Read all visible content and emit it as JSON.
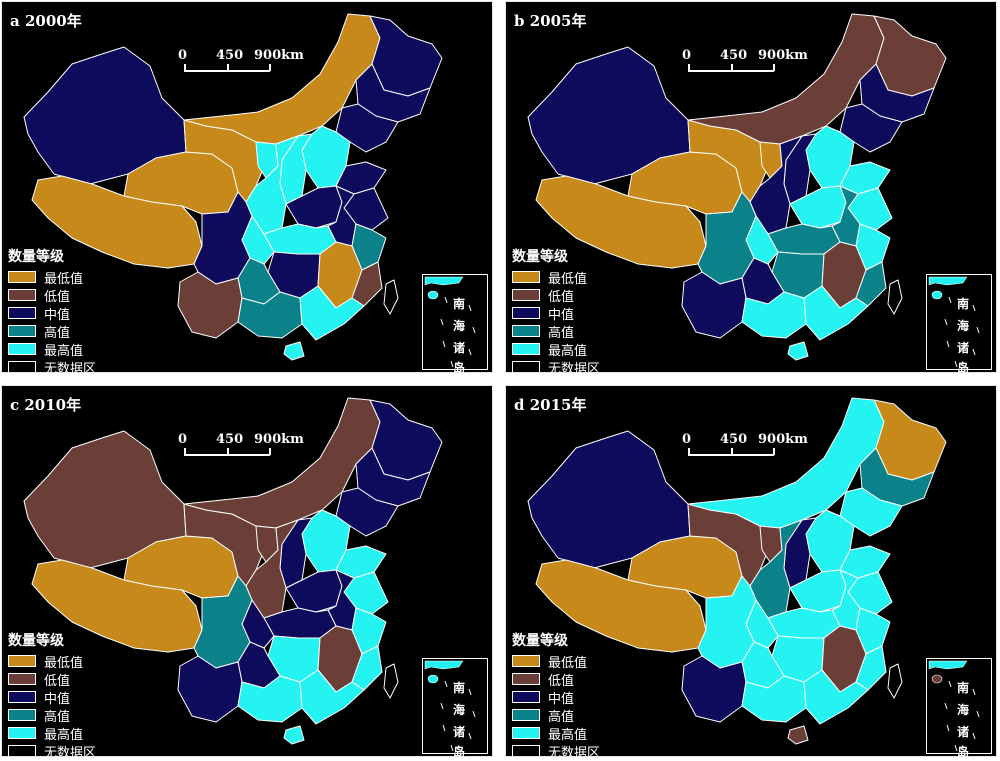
{
  "colors": {
    "lowest": "#c8891b",
    "low": "#6b3e38",
    "mid": "#0e0b5c",
    "high": "#0b8289",
    "highest": "#25f3f1",
    "nodata": "#000000",
    "border": "#ffffff"
  },
  "scale": {
    "v0": "0",
    "v1": "450",
    "v2": "900km"
  },
  "legend": {
    "title": "数量等级",
    "items": [
      {
        "key": "lowest",
        "label": "最低值"
      },
      {
        "key": "low",
        "label": "低值"
      },
      {
        "key": "mid",
        "label": "中值"
      },
      {
        "key": "high",
        "label": "高值"
      },
      {
        "key": "highest",
        "label": "最高值"
      },
      {
        "key": "nodata",
        "label": "无数据区"
      }
    ]
  },
  "inset": {
    "l0": "南",
    "l1": "海",
    "l2": "诸",
    "l3": "岛"
  },
  "panels": [
    {
      "label": "a 2000年",
      "regions": {
        "xinjiang": "mid",
        "tibet": "lowest",
        "qinghai": "lowest",
        "gansu": "lowest",
        "neimenggu": "lowest",
        "heilongjiang": "mid",
        "jilin": "mid",
        "liaoning": "mid",
        "ningxia": "highest",
        "shaanxi": "highest",
        "shanxi": "highest",
        "hebei": "highest",
        "beijing": "low",
        "shandong": "mid",
        "henan": "mid",
        "jiangsu": "mid",
        "anhui": "mid",
        "zhejiang": "high",
        "sichuan": "mid",
        "chongqing": "highest",
        "hubei": "highest",
        "hunan": "mid",
        "jiangxi": "lowest",
        "fujian": "low",
        "yunnan": "low",
        "guizhou": "high",
        "guangxi": "high",
        "guangdong": "highest",
        "hainan": "highest",
        "taiwan": "nodata"
      }
    },
    {
      "label": "b 2005年",
      "regions": {
        "xinjiang": "mid",
        "tibet": "lowest",
        "qinghai": "lowest",
        "gansu": "lowest",
        "neimenggu": "low",
        "heilongjiang": "low",
        "jilin": "mid",
        "liaoning": "mid",
        "ningxia": "lowest",
        "shaanxi": "mid",
        "shanxi": "mid",
        "hebei": "highest",
        "beijing": "lowest",
        "shandong": "highest",
        "henan": "highest",
        "jiangsu": "highest",
        "anhui": "high",
        "zhejiang": "highest",
        "sichuan": "high",
        "chongqing": "highest",
        "hubei": "high",
        "hunan": "high",
        "jiangxi": "low",
        "fujian": "high",
        "yunnan": "mid",
        "guizhou": "mid",
        "guangxi": "highest",
        "guangdong": "highest",
        "hainan": "highest",
        "taiwan": "nodata"
      }
    },
    {
      "label": "c 2010年",
      "regions": {
        "xinjiang": "low",
        "tibet": "lowest",
        "qinghai": "lowest",
        "gansu": "low",
        "neimenggu": "low",
        "heilongjiang": "mid",
        "jilin": "mid",
        "liaoning": "mid",
        "ningxia": "low",
        "shaanxi": "low",
        "shanxi": "mid",
        "hebei": "highest",
        "beijing": "lowest",
        "shandong": "highest",
        "henan": "mid",
        "jiangsu": "highest",
        "anhui": "mid",
        "zhejiang": "highest",
        "sichuan": "high",
        "chongqing": "mid",
        "hubei": "mid",
        "hunan": "highest",
        "jiangxi": "low",
        "fujian": "highest",
        "yunnan": "mid",
        "guizhou": "mid",
        "guangxi": "highest",
        "guangdong": "highest",
        "hainan": "highest",
        "taiwan": "nodata"
      }
    },
    {
      "label": "d 2015年",
      "regions": {
        "xinjiang": "mid",
        "tibet": "lowest",
        "qinghai": "lowest",
        "gansu": "low",
        "neimenggu": "highest",
        "heilongjiang": "lowest",
        "jilin": "high",
        "liaoning": "highest",
        "ningxia": "low",
        "shaanxi": "high",
        "shanxi": "mid",
        "hebei": "highest",
        "beijing": "lowest",
        "shandong": "highest",
        "henan": "highest",
        "jiangsu": "highest",
        "anhui": "highest",
        "zhejiang": "highest",
        "sichuan": "highest",
        "chongqing": "highest",
        "hubei": "highest",
        "hunan": "highest",
        "jiangxi": "low",
        "fujian": "highest",
        "yunnan": "mid",
        "guizhou": "highest",
        "guangxi": "highest",
        "guangdong": "highest",
        "hainan": "low",
        "taiwan": "nodata"
      }
    }
  ]
}
